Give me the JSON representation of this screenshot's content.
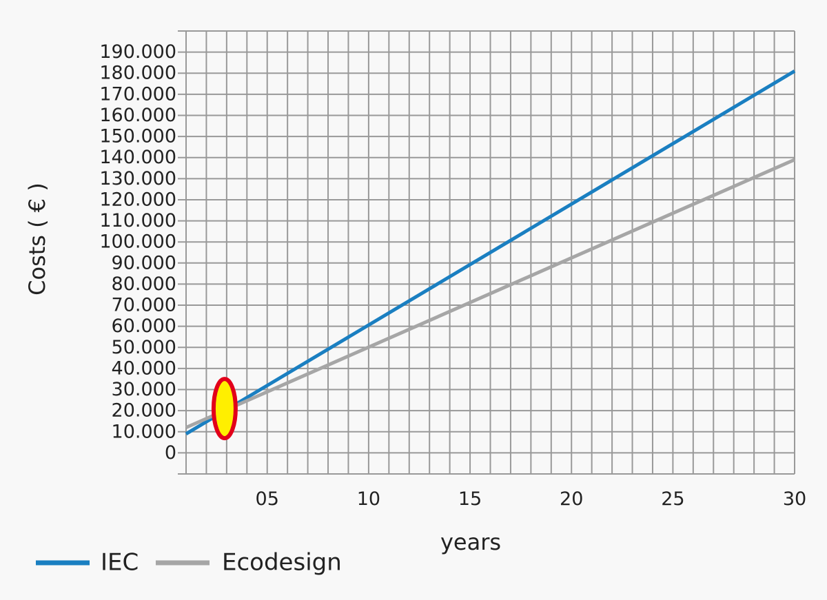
{
  "chart_data": {
    "type": "line",
    "xlabel": "years",
    "ylabel": "Costs ( € )",
    "xlim": [
      0,
      30
    ],
    "ylim": [
      -10000,
      200000
    ],
    "x_ticks": [
      {
        "value": 4,
        "label": "05"
      },
      {
        "value": 9,
        "label": "10"
      },
      {
        "value": 14,
        "label": "15"
      },
      {
        "value": 19,
        "label": "20"
      },
      {
        "value": 24,
        "label": "25"
      },
      {
        "value": 30,
        "label": "30"
      }
    ],
    "y_ticks": [
      {
        "value": 0,
        "label": "0"
      },
      {
        "value": 10000,
        "label": "10.000"
      },
      {
        "value": 20000,
        "label": "20.000"
      },
      {
        "value": 30000,
        "label": "30.000"
      },
      {
        "value": 40000,
        "label": "40.000"
      },
      {
        "value": 50000,
        "label": "50.000"
      },
      {
        "value": 60000,
        "label": "60.000"
      },
      {
        "value": 70000,
        "label": "70.000"
      },
      {
        "value": 80000,
        "label": "80.000"
      },
      {
        "value": 90000,
        "label": "90.000"
      },
      {
        "value": 100000,
        "label": "100.000"
      },
      {
        "value": 110000,
        "label": "110.000"
      },
      {
        "value": 120000,
        "label": "120.000"
      },
      {
        "value": 130000,
        "label": "130.000"
      },
      {
        "value": 140000,
        "label": "140.000"
      },
      {
        "value": 150000,
        "label": "150.000"
      },
      {
        "value": 160000,
        "label": "160.000"
      },
      {
        "value": 170000,
        "label": "170.000"
      },
      {
        "value": 180000,
        "label": "180.000"
      },
      {
        "value": 190000,
        "label": "190.000"
      }
    ],
    "series": [
      {
        "name": "IEC",
        "color": "#1a7fc1",
        "x": [
          0,
          30
        ],
        "y": [
          9000,
          181000
        ]
      },
      {
        "name": "Ecodesign",
        "color": "#a6a6a6",
        "x": [
          0,
          30
        ],
        "y": [
          12000,
          139000
        ]
      }
    ],
    "annotation": {
      "type": "ellipse-marker",
      "x": 1.9,
      "y": 21000,
      "fill": "#ffef00",
      "stroke": "#e2001a"
    },
    "grid": true,
    "legend_position": "bottom-left"
  }
}
